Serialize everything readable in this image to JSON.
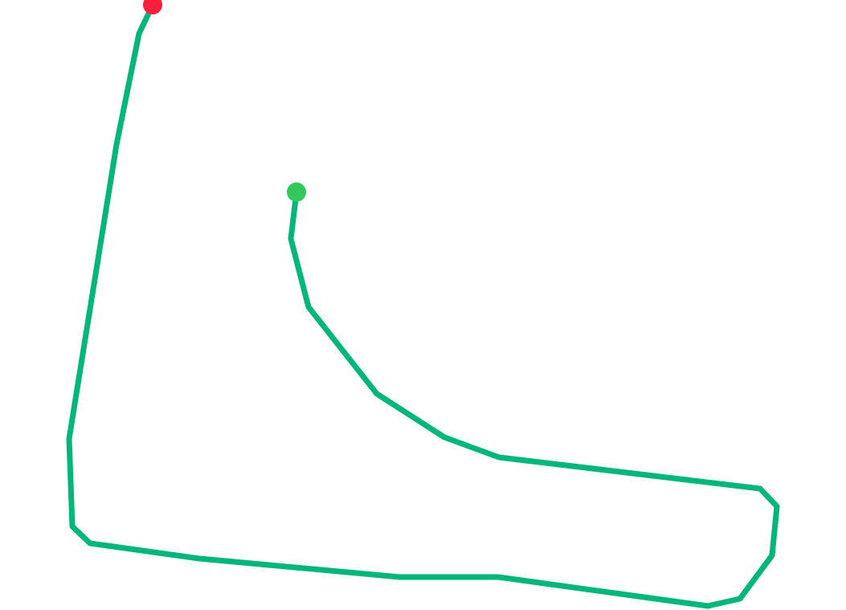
{
  "map": {
    "background_color": "#ffffff",
    "route": {
      "color": "#00b67a"
    },
    "start_marker": {
      "icon": "start-point-icon",
      "color": "#34c759"
    },
    "end_marker": {
      "icon": "end-point-icon",
      "color": "#ff1e3c"
    }
  }
}
